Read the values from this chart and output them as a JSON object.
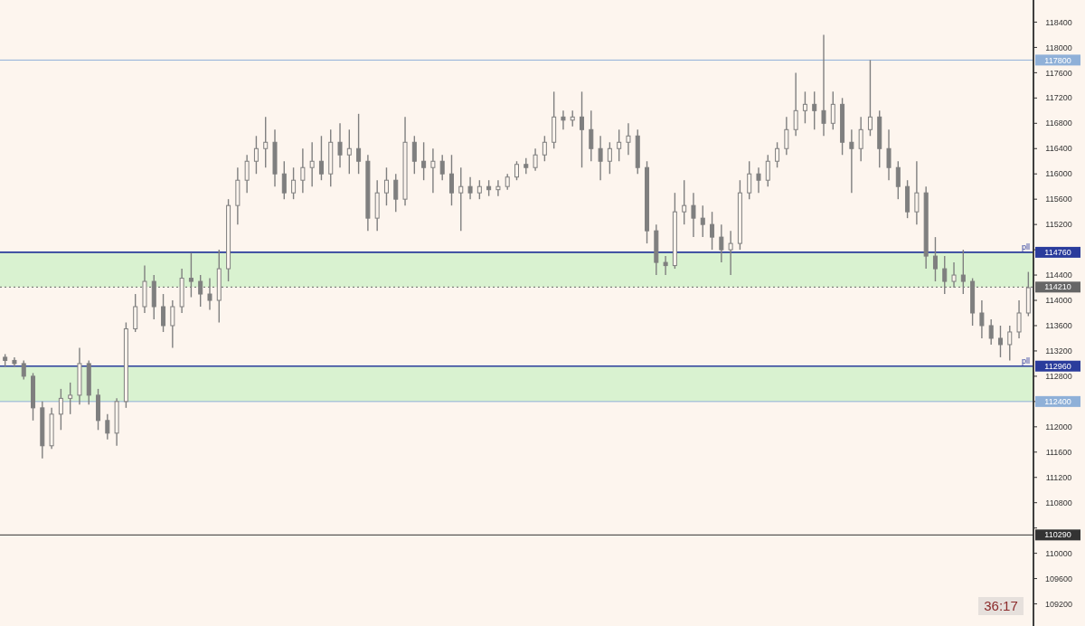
{
  "chart_data": {
    "type": "candlestick",
    "color": "#7f7f7f",
    "tick_labels": "y",
    "categories": [
      null,
      null,
      null,
      null,
      null,
      null,
      null,
      null,
      null,
      null,
      null,
      null,
      null,
      null,
      null,
      null,
      null,
      null,
      null,
      null,
      null,
      null,
      null,
      null,
      null,
      null,
      null,
      null,
      null,
      null,
      null,
      null,
      null,
      null,
      null,
      null,
      null,
      null,
      null,
      null,
      null,
      null,
      null,
      null,
      null,
      null,
      null,
      null,
      null,
      null,
      null,
      null,
      null,
      null,
      null,
      null,
      null,
      null,
      null,
      null,
      null,
      null,
      null,
      null,
      null,
      null,
      null,
      null,
      null,
      null,
      null,
      null,
      null,
      null,
      null,
      null,
      null,
      null,
      null,
      null,
      null,
      null,
      null,
      null,
      null,
      null,
      null,
      null,
      null,
      null,
      null,
      null,
      null,
      null,
      null,
      null,
      null,
      null,
      null,
      null,
      null,
      null,
      null,
      null,
      null,
      null,
      null,
      null,
      null,
      null,
      null
    ],
    "ohlc": [
      [
        113100,
        113150,
        112950,
        113050
      ],
      [
        113050,
        113100,
        112950,
        113000
      ],
      [
        113000,
        113050,
        112750,
        112800
      ],
      [
        112800,
        112850,
        112100,
        112300
      ],
      [
        112300,
        112400,
        111500,
        111700
      ],
      [
        111700,
        112300,
        111650,
        112200
      ],
      [
        112200,
        112600,
        111950,
        112450
      ],
      [
        112450,
        112700,
        112200,
        112500
      ],
      [
        112500,
        113250,
        112350,
        113000
      ],
      [
        113000,
        113050,
        112350,
        112500
      ],
      [
        112500,
        112600,
        111950,
        112100
      ],
      [
        112100,
        112200,
        111800,
        111900
      ],
      [
        111900,
        112450,
        111700,
        112400
      ],
      [
        112400,
        113650,
        112300,
        113550
      ],
      [
        113550,
        114100,
        113500,
        113900
      ],
      [
        113900,
        114550,
        113800,
        114300
      ],
      [
        114300,
        114400,
        113700,
        113900
      ],
      [
        113900,
        114100,
        113500,
        113600
      ],
      [
        113600,
        114000,
        113250,
        113900
      ],
      [
        113900,
        114500,
        113800,
        114350
      ],
      [
        114350,
        114750,
        114050,
        114300
      ],
      [
        114300,
        114400,
        113900,
        114100
      ],
      [
        114100,
        114350,
        113850,
        114000
      ],
      [
        114000,
        114800,
        113650,
        114500
      ],
      [
        114500,
        115600,
        114300,
        115500
      ],
      [
        115500,
        116100,
        115200,
        115900
      ],
      [
        115900,
        116300,
        115700,
        116200
      ],
      [
        116200,
        116600,
        116000,
        116400
      ],
      [
        116400,
        116900,
        116100,
        116500
      ],
      [
        116500,
        116700,
        115800,
        116000
      ],
      [
        116000,
        116200,
        115600,
        115700
      ],
      [
        115700,
        116100,
        115600,
        115900
      ],
      [
        115900,
        116400,
        115700,
        116100
      ],
      [
        116100,
        116500,
        115800,
        116200
      ],
      [
        116200,
        116600,
        115900,
        116000
      ],
      [
        116000,
        116700,
        115800,
        116500
      ],
      [
        116500,
        116800,
        116100,
        116300
      ],
      [
        116300,
        116700,
        116000,
        116400
      ],
      [
        116400,
        116950,
        116000,
        116200
      ],
      [
        116200,
        116300,
        115100,
        115300
      ],
      [
        115300,
        115900,
        115100,
        115700
      ],
      [
        115700,
        116100,
        115500,
        115900
      ],
      [
        115900,
        116000,
        115400,
        115600
      ],
      [
        115600,
        116900,
        115500,
        116500
      ],
      [
        116500,
        116600,
        116000,
        116200
      ],
      [
        116200,
        116500,
        115900,
        116100
      ],
      [
        116100,
        116400,
        115700,
        116200
      ],
      [
        116200,
        116300,
        115900,
        116000
      ],
      [
        116000,
        116300,
        115500,
        115700
      ],
      [
        115700,
        116100,
        115100,
        115800
      ],
      [
        115800,
        115950,
        115600,
        115700
      ],
      [
        115700,
        115900,
        115600,
        115800
      ],
      [
        115800,
        115900,
        115650,
        115750
      ],
      [
        115750,
        115900,
        115650,
        115800
      ],
      [
        115800,
        116000,
        115750,
        115950
      ],
      [
        115950,
        116200,
        115900,
        116150
      ],
      [
        116150,
        116250,
        116000,
        116100
      ],
      [
        116100,
        116400,
        116050,
        116300
      ],
      [
        116300,
        116600,
        116200,
        116500
      ],
      [
        116500,
        117300,
        116400,
        116900
      ],
      [
        116900,
        117000,
        116700,
        116850
      ],
      [
        116850,
        117000,
        116750,
        116900
      ],
      [
        116900,
        117300,
        116100,
        116700
      ],
      [
        116700,
        117000,
        116200,
        116400
      ],
      [
        116400,
        116600,
        115900,
        116200
      ],
      [
        116200,
        116500,
        116000,
        116400
      ],
      [
        116400,
        116700,
        116200,
        116500
      ],
      [
        116500,
        116800,
        116300,
        116600
      ],
      [
        116600,
        116700,
        116000,
        116100
      ],
      [
        116100,
        116200,
        114900,
        115100
      ],
      [
        115100,
        115200,
        114400,
        114600
      ],
      [
        114600,
        114700,
        114400,
        114550
      ],
      [
        114550,
        115700,
        114500,
        115400
      ],
      [
        115400,
        115900,
        115200,
        115500
      ],
      [
        115500,
        115700,
        115000,
        115300
      ],
      [
        115300,
        115500,
        115000,
        115200
      ],
      [
        115200,
        115400,
        114800,
        115000
      ],
      [
        115000,
        115200,
        114600,
        114800
      ],
      [
        114800,
        115100,
        114400,
        114900
      ],
      [
        114900,
        115900,
        114800,
        115700
      ],
      [
        115700,
        116200,
        115600,
        116000
      ],
      [
        116000,
        116100,
        115700,
        115900
      ],
      [
        115900,
        116300,
        115800,
        116200
      ],
      [
        116200,
        116500,
        116100,
        116400
      ],
      [
        116400,
        116900,
        116300,
        116700
      ],
      [
        116700,
        117600,
        116600,
        117000
      ],
      [
        117000,
        117300,
        116800,
        117100
      ],
      [
        117100,
        117300,
        116700,
        117000
      ],
      [
        117000,
        118200,
        116600,
        116800
      ],
      [
        116800,
        117300,
        116700,
        117100
      ],
      [
        117100,
        117200,
        116300,
        116500
      ],
      [
        116500,
        116700,
        115700,
        116400
      ],
      [
        116400,
        116900,
        116200,
        116700
      ],
      [
        116700,
        117800,
        116600,
        116900
      ],
      [
        116900,
        117000,
        116100,
        116400
      ],
      [
        116400,
        116700,
        115900,
        116100
      ],
      [
        116100,
        116200,
        115600,
        115800
      ],
      [
        115800,
        115900,
        115300,
        115400
      ],
      [
        115400,
        116200,
        115200,
        115700
      ],
      [
        115700,
        115800,
        114500,
        114700
      ],
      [
        114700,
        115000,
        114300,
        114500
      ],
      [
        114500,
        114700,
        114100,
        114300
      ],
      [
        114300,
        114600,
        114200,
        114400
      ],
      [
        114400,
        114800,
        114100,
        114300
      ],
      [
        114300,
        114350,
        113600,
        113800
      ],
      [
        113800,
        114000,
        113400,
        113600
      ],
      [
        113600,
        113700,
        113300,
        113400
      ],
      [
        113400,
        113600,
        113100,
        113300
      ],
      [
        113300,
        113600,
        113050,
        113500
      ],
      [
        113500,
        114000,
        113400,
        113800
      ],
      [
        113800,
        114450,
        113750,
        114200
      ]
    ],
    "ylim": [
      108850,
      118750
    ],
    "yticks": [
      109200,
      109600,
      110000,
      {
        "value": 110400,
        "label": null
      },
      110800,
      111200,
      111600,
      112000,
      {
        "value": 112400,
        "label": null
      },
      112800,
      113200,
      113600,
      114000,
      114400,
      {
        "value": 114800,
        "label": null
      },
      115200,
      115600,
      116000,
      116400,
      116800,
      117200,
      117600,
      118000,
      118400
    ],
    "bands": [
      {
        "axis": "y",
        "from": 114210,
        "to": 114760,
        "color": "#d9f2d0"
      },
      {
        "axis": "y",
        "from": 112400,
        "to": 112960,
        "color": "#d9f2d0"
      }
    ],
    "ref_lines": [
      {
        "axis": "y",
        "value": 117800,
        "label": "117800",
        "color": "#8fb0d8",
        "line_style": "solid"
      },
      {
        "axis": "y",
        "value": 114760,
        "label": "114760",
        "color": "#2a3c9c",
        "line_style": "solid"
      },
      {
        "axis": "y",
        "value": 114210,
        "label": "114210",
        "color": "#666666",
        "line_style": "dotted"
      },
      {
        "axis": "y",
        "value": 112960,
        "label": "112960",
        "color": "#2a3c9c",
        "line_style": "solid"
      },
      {
        "axis": "y",
        "value": 112400,
        "label": "112400",
        "color": "#8fb0d8",
        "line_style": "solid"
      },
      {
        "axis": "y",
        "value": 110290,
        "label": "110290",
        "color": "#333333",
        "line_style": "solid"
      }
    ],
    "annotations": [
      {
        "text": "pll",
        "y": 114760
      },
      {
        "text": "pll",
        "y": 112960
      },
      "36:17"
    ]
  }
}
